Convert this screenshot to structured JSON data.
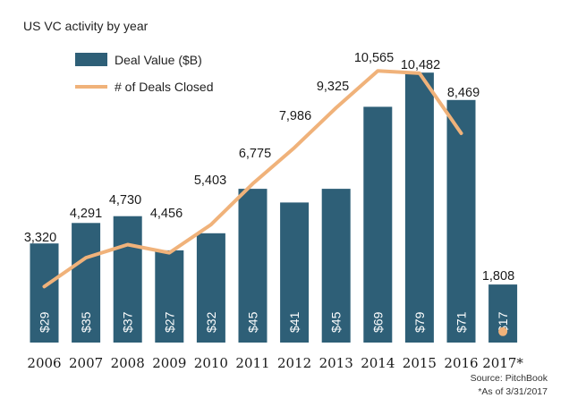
{
  "chart_data": {
    "type": "bar",
    "title": "US VC activity by year",
    "categories": [
      "2006",
      "2007",
      "2008",
      "2009",
      "2010",
      "2011",
      "2012",
      "2013",
      "2014",
      "2015",
      "2016",
      "2017*"
    ],
    "series": [
      {
        "name": "Deal Value ($B)",
        "type": "bar",
        "color": "#2e5f77",
        "values": [
          29,
          35,
          37,
          27,
          32,
          45,
          41,
          45,
          69,
          79,
          71,
          17
        ],
        "labels": [
          "$29",
          "$35",
          "$37",
          "$27",
          "$32",
          "$45",
          "$41",
          "$45",
          "$69",
          "$79",
          "$71",
          "$17"
        ]
      },
      {
        "name": "# of Deals Closed",
        "type": "line",
        "color": "#f0b27a",
        "values": [
          3320,
          4291,
          4730,
          4456,
          5403,
          6775,
          7986,
          9325,
          10565,
          10482,
          8469,
          1808
        ],
        "labels": [
          "3,320",
          "4,291",
          "4,730",
          "4,456",
          "5,403",
          "6,775",
          "7,986",
          "9,325",
          "10,565",
          "10,482",
          "8,469",
          "1,808"
        ],
        "last_point_marker_only": true
      }
    ],
    "grid": false,
    "legend": "top-left",
    "notes": {
      "source": "Source: PitchBook",
      "asof": "*As of 3/31/2017"
    }
  }
}
